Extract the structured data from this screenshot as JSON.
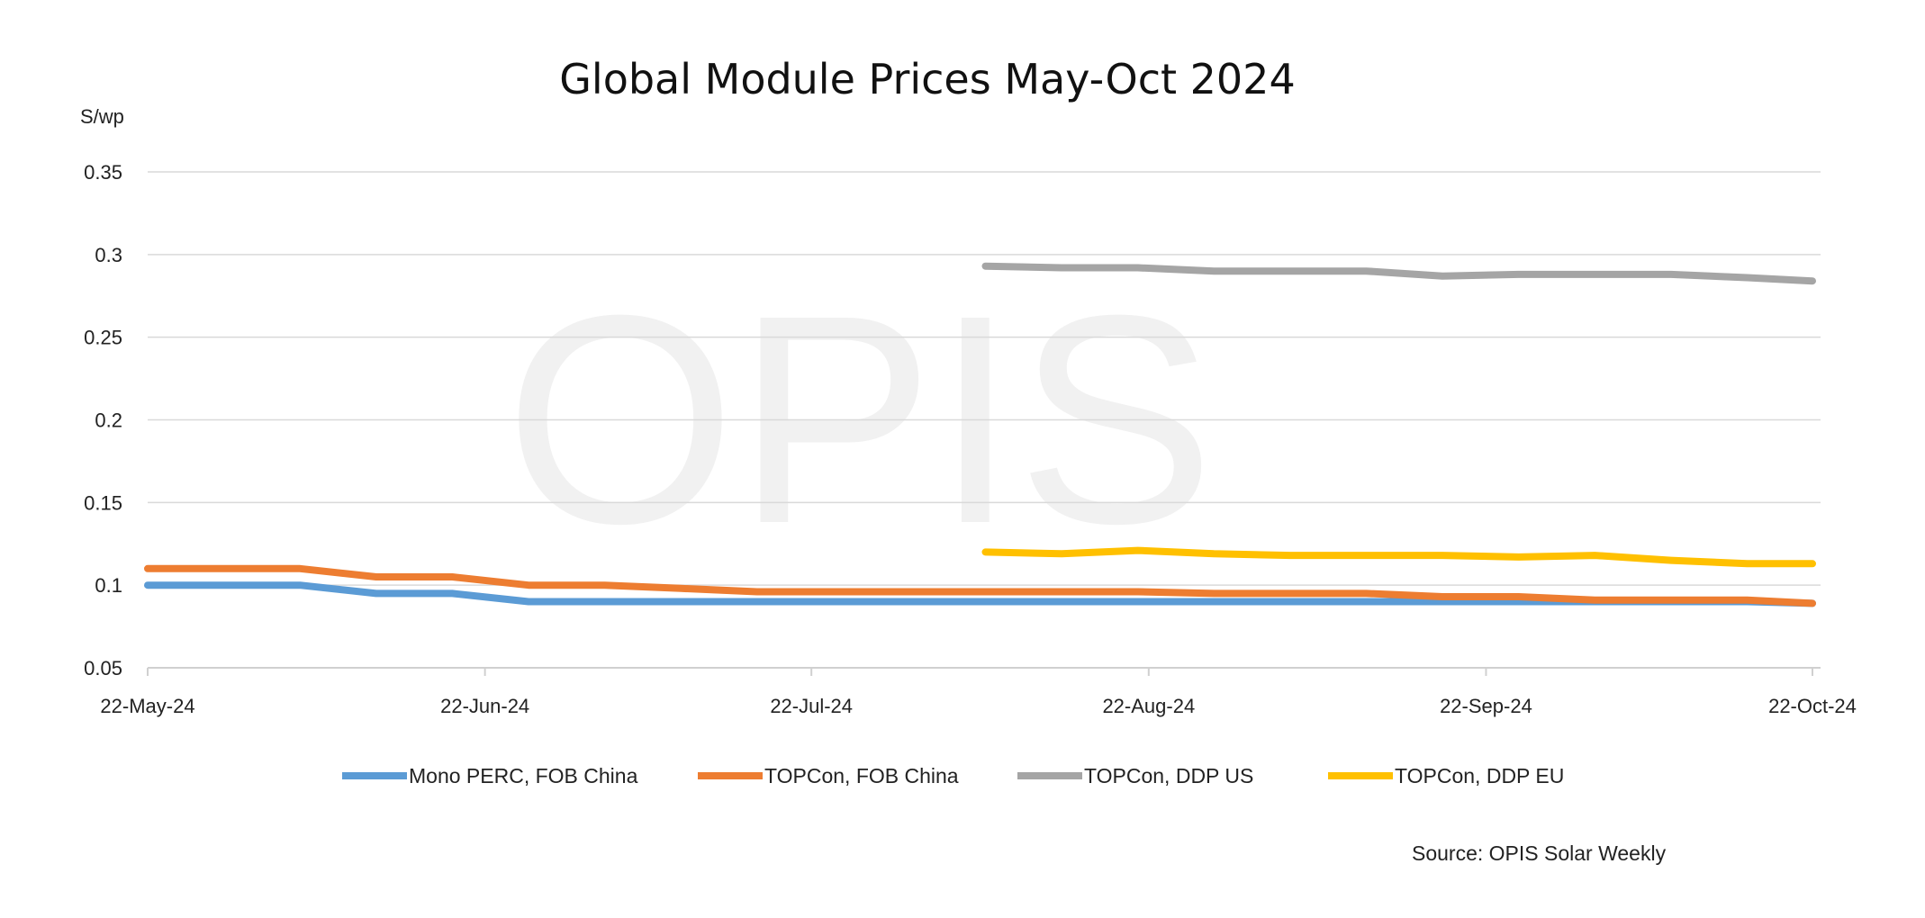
{
  "chart_data": {
    "type": "line",
    "title": "Global Module Prices May-Oct 2024",
    "ylabel": "S/wp",
    "xlabel": "",
    "ylim": [
      0.05,
      0.35
    ],
    "yticks": [
      0.05,
      0.1,
      0.15,
      0.2,
      0.25,
      0.3,
      0.35
    ],
    "ytick_labels": [
      "0.05",
      "0.1",
      "0.15",
      "0.2",
      "0.25",
      "0.3",
      "0.35"
    ],
    "xlim": [
      "2024-05-22",
      "2024-10-22"
    ],
    "xticks": [
      "2024-05-22",
      "2024-06-22",
      "2024-07-22",
      "2024-08-22",
      "2024-09-22",
      "2024-10-22"
    ],
    "xtick_labels": [
      "22-May-24",
      "22-Jun-24",
      "22-Jul-24",
      "22-Aug-24",
      "22-Sep-24",
      "22-Oct-24"
    ],
    "grid": true,
    "legend_position": "bottom",
    "watermark": "OPIS",
    "source": "Source: OPIS Solar Weekly",
    "x": [
      "2024-05-22",
      "2024-05-29",
      "2024-06-05",
      "2024-06-12",
      "2024-06-19",
      "2024-06-26",
      "2024-07-03",
      "2024-07-10",
      "2024-07-17",
      "2024-07-24",
      "2024-07-31",
      "2024-08-07",
      "2024-08-14",
      "2024-08-21",
      "2024-08-28",
      "2024-09-04",
      "2024-09-11",
      "2024-09-18",
      "2024-09-25",
      "2024-10-02",
      "2024-10-09",
      "2024-10-16",
      "2024-10-22"
    ],
    "series": [
      {
        "name": "Mono PERC, FOB China",
        "color": "#5B9BD5",
        "values": [
          0.1,
          0.1,
          0.1,
          0.095,
          0.095,
          0.09,
          0.09,
          0.09,
          0.09,
          0.09,
          0.09,
          0.09,
          0.09,
          0.09,
          0.09,
          0.09,
          0.09,
          0.09,
          0.09,
          0.09,
          0.09,
          0.09,
          0.089
        ]
      },
      {
        "name": "TOPCon, FOB China",
        "color": "#ED7D31",
        "values": [
          0.11,
          0.11,
          0.11,
          0.105,
          0.105,
          0.1,
          0.1,
          0.098,
          0.096,
          0.096,
          0.096,
          0.096,
          0.096,
          0.096,
          0.095,
          0.095,
          0.095,
          0.093,
          0.093,
          0.091,
          0.091,
          0.091,
          0.089
        ]
      },
      {
        "name": "TOPCon, DDP US",
        "color": "#A5A5A5",
        "values": [
          null,
          null,
          null,
          null,
          null,
          null,
          null,
          null,
          null,
          null,
          null,
          0.293,
          0.292,
          0.292,
          0.29,
          0.29,
          0.29,
          0.287,
          0.288,
          0.288,
          0.288,
          0.286,
          0.284
        ]
      },
      {
        "name": "TOPCon, DDP EU",
        "color": "#FFC000",
        "values": [
          null,
          null,
          null,
          null,
          null,
          null,
          null,
          null,
          null,
          null,
          null,
          0.12,
          0.119,
          0.121,
          0.119,
          0.118,
          0.118,
          0.118,
          0.117,
          0.118,
          0.115,
          0.113,
          0.113
        ]
      }
    ]
  }
}
